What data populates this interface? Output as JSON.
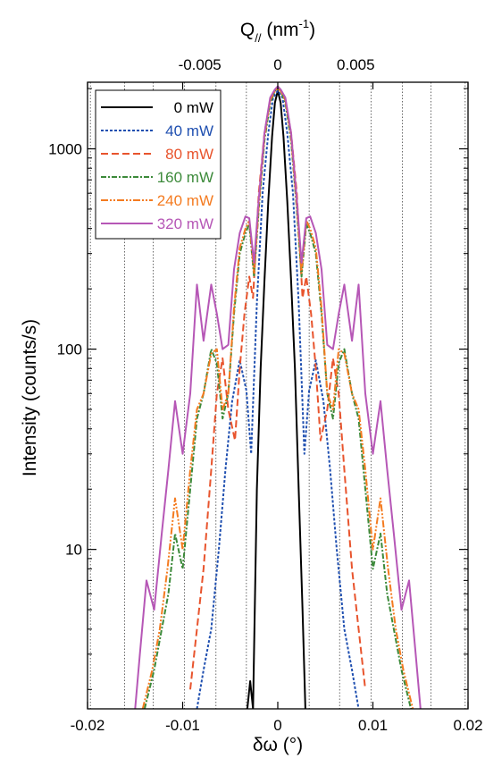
{
  "chart_data": {
    "type": "line",
    "xlabel": "δω (°)",
    "ylabel": "Intensity (counts/s)",
    "top_xlabel": "Q// (nm-1)",
    "top_xlabel_parts": {
      "q": "Q",
      "q_sub": "//",
      "open": " (nm",
      "exp": "-1",
      "close": ")"
    },
    "xlim": [
      -0.02,
      0.02
    ],
    "ylim": [
      1.6,
      2150
    ],
    "yscale": "log",
    "x_ticks": [
      -0.02,
      -0.01,
      0,
      0.01,
      0.02
    ],
    "x_tick_labels": [
      "-0.02",
      "-0.01",
      "0",
      "0.01",
      "0.02"
    ],
    "y_ticks": [
      10,
      100,
      1000
    ],
    "y_tick_labels": [
      "10",
      "100",
      "1000"
    ],
    "top_ticks": [
      -0.005,
      0,
      0.005
    ],
    "top_tick_labels": [
      "-0.005",
      "0",
      "0.005"
    ],
    "top_tick_x_positions_deg": [
      -0.0082,
      0,
      0.0082
    ],
    "vertical_gridlines_x": [
      -0.0197,
      -0.0161,
      -0.0131,
      -0.0098,
      -0.0065,
      -0.0033,
      0.0033,
      0.0065,
      0.0098,
      0.0131,
      0.0161,
      0.0197
    ],
    "grid": "vertical dotted lines",
    "legend_position": "top-left",
    "series": [
      {
        "name": "0 mW",
        "color": "#000000",
        "dash": "",
        "x": [
          -0.0032,
          -0.0029,
          -0.0026,
          -0.0022,
          -0.0018,
          -0.0014,
          -0.001,
          -0.0006,
          -0.0003,
          0,
          0.0003,
          0.0006,
          0.001,
          0.0014,
          0.0018,
          0.0022,
          0.0026,
          0.0029
        ],
        "y": [
          1.6,
          2.2,
          1.6,
          20,
          80,
          220,
          550,
          1150,
          1700,
          1950,
          1700,
          1150,
          550,
          220,
          80,
          20,
          5,
          1.6
        ]
      },
      {
        "name": "40 mW",
        "color": "#1f4fb0",
        "dash": "3,2",
        "x": [
          -0.0085,
          -0.0078,
          -0.007,
          -0.0062,
          -0.0055,
          -0.0048,
          -0.004,
          -0.0033,
          -0.0028,
          -0.0022,
          -0.0016,
          -0.001,
          -0.0005,
          0,
          0.0005,
          0.001,
          0.0016,
          0.0022,
          0.0028,
          0.0033,
          0.004,
          0.0048,
          0.0055,
          0.0062,
          0.007,
          0.0078,
          0.0085
        ],
        "y": [
          1.6,
          2.5,
          4,
          10,
          25,
          55,
          88,
          62,
          30,
          170,
          600,
          1200,
          1800,
          1950,
          1800,
          1200,
          600,
          170,
          30,
          62,
          88,
          55,
          25,
          10,
          4,
          2.5,
          1.6
        ]
      },
      {
        "name": "80 mW",
        "color": "#e8542d",
        "dash": "8,4",
        "x": [
          -0.0092,
          -0.0085,
          -0.0078,
          -0.007,
          -0.0064,
          -0.0058,
          -0.0052,
          -0.0045,
          -0.004,
          -0.0035,
          -0.003,
          -0.0026,
          -0.002,
          -0.0014,
          -0.0008,
          -0.0003,
          0,
          0.0003,
          0.0008,
          0.0014,
          0.002,
          0.0026,
          0.003,
          0.0035,
          0.004,
          0.0045,
          0.0052,
          0.0058,
          0.0064,
          0.007,
          0.0078,
          0.0085,
          0.0092
        ],
        "y": [
          2,
          4,
          8,
          25,
          60,
          90,
          50,
          35,
          80,
          150,
          230,
          180,
          600,
          1200,
          1750,
          1950,
          2000,
          1950,
          1750,
          1200,
          600,
          180,
          230,
          150,
          80,
          35,
          50,
          90,
          60,
          25,
          8,
          4,
          2
        ]
      },
      {
        "name": "160 mW",
        "color": "#3c8a3a",
        "dash": "6,2,2,2",
        "x": [
          -0.014,
          -0.013,
          -0.0122,
          -0.0115,
          -0.0108,
          -0.01,
          -0.0092,
          -0.0085,
          -0.0078,
          -0.007,
          -0.0064,
          -0.0058,
          -0.0052,
          -0.0046,
          -0.004,
          -0.0034,
          -0.003,
          -0.0025,
          -0.002,
          -0.0014,
          -0.0008,
          -0.0003,
          0,
          0.0003,
          0.0008,
          0.0014,
          0.002,
          0.0025,
          0.003,
          0.0034,
          0.004,
          0.0046,
          0.0052,
          0.0058,
          0.0064,
          0.007,
          0.0078,
          0.0085,
          0.0092,
          0.01,
          0.0108,
          0.0115,
          0.0122,
          0.013,
          0.014
        ],
        "y": [
          1.6,
          2.5,
          4,
          6,
          12,
          8,
          20,
          45,
          60,
          100,
          85,
          45,
          60,
          150,
          300,
          380,
          420,
          230,
          500,
          1100,
          1700,
          1950,
          2000,
          1950,
          1700,
          1100,
          500,
          230,
          420,
          380,
          300,
          150,
          60,
          45,
          85,
          100,
          60,
          45,
          20,
          8,
          12,
          6,
          4,
          2.5,
          1.6
        ]
      },
      {
        "name": "240 mW",
        "color": "#f47b20",
        "dash": "8,2,2,2,2,2",
        "x": [
          -0.0142,
          -0.0132,
          -0.0124,
          -0.0116,
          -0.0108,
          -0.01,
          -0.0092,
          -0.0085,
          -0.0078,
          -0.007,
          -0.0064,
          -0.0058,
          -0.0052,
          -0.0046,
          -0.004,
          -0.0034,
          -0.003,
          -0.0025,
          -0.002,
          -0.0014,
          -0.0008,
          -0.0003,
          0,
          0.0003,
          0.0008,
          0.0014,
          0.002,
          0.0025,
          0.003,
          0.0034,
          0.004,
          0.0046,
          0.0052,
          0.0058,
          0.0064,
          0.007,
          0.0078,
          0.0085,
          0.0092,
          0.01,
          0.0108,
          0.0116,
          0.0124,
          0.0132,
          0.0142
        ],
        "y": [
          1.6,
          2.5,
          4,
          8,
          18,
          10,
          25,
          50,
          60,
          95,
          100,
          50,
          60,
          160,
          320,
          400,
          440,
          240,
          520,
          1150,
          1750,
          1950,
          2000,
          1950,
          1750,
          1150,
          520,
          240,
          440,
          400,
          320,
          160,
          60,
          50,
          100,
          95,
          60,
          50,
          25,
          10,
          18,
          8,
          4,
          2.5,
          1.6
        ]
      },
      {
        "name": "320 mW",
        "color": "#b657b6",
        "dash": "",
        "x": [
          -0.015,
          -0.0145,
          -0.0138,
          -0.013,
          -0.0122,
          -0.0115,
          -0.0108,
          -0.01,
          -0.0092,
          -0.0085,
          -0.0078,
          -0.007,
          -0.0064,
          -0.0058,
          -0.0052,
          -0.0046,
          -0.004,
          -0.0034,
          -0.003,
          -0.0025,
          -0.002,
          -0.0014,
          -0.0008,
          -0.0003,
          0,
          0.0003,
          0.0008,
          0.0014,
          0.002,
          0.0025,
          0.003,
          0.0034,
          0.004,
          0.0046,
          0.0052,
          0.0058,
          0.0064,
          0.007,
          0.0078,
          0.0085,
          0.0092,
          0.01,
          0.0108,
          0.0115,
          0.0122,
          0.013,
          0.0138,
          0.0145,
          0.015
        ],
        "y": [
          1.6,
          3,
          7,
          5,
          12,
          25,
          55,
          30,
          60,
          210,
          110,
          210,
          150,
          100,
          105,
          250,
          380,
          460,
          450,
          270,
          560,
          1200,
          1800,
          1980,
          2050,
          1980,
          1800,
          1200,
          560,
          270,
          450,
          460,
          380,
          250,
          105,
          100,
          150,
          210,
          110,
          210,
          60,
          30,
          55,
          25,
          12,
          5,
          7,
          3,
          1.6
        ]
      }
    ]
  }
}
